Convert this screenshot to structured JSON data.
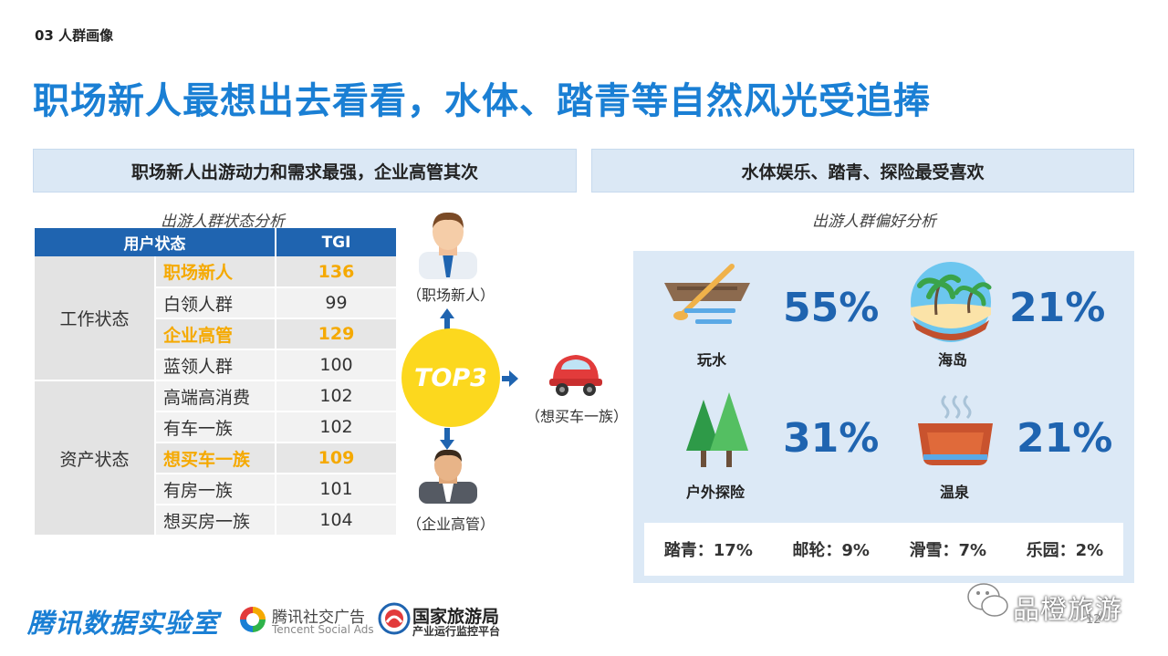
{
  "section_tag": "03 人群画像",
  "title": "职场新人最想出去看看，水体、踏青等自然风光受追捧",
  "left_banner": "职场新人出游动力和需求最强，企业高管其次",
  "right_banner": "水体娱乐、踏青、探险最受喜欢",
  "left_subtitle": "出游人群状态分析",
  "right_subtitle": "出游人群偏好分析",
  "table": {
    "headers": [
      "用户状态",
      "TGI"
    ],
    "groups": [
      {
        "name": "工作状态",
        "rows": [
          {
            "label": "职场新人",
            "value": "136",
            "highlight": true
          },
          {
            "label": "白领人群",
            "value": "99",
            "highlight": false
          },
          {
            "label": "企业高管",
            "value": "129",
            "highlight": true
          },
          {
            "label": "蓝领人群",
            "value": "100",
            "highlight": false
          }
        ]
      },
      {
        "name": "资产状态",
        "rows": [
          {
            "label": "高端高消费",
            "value": "102",
            "highlight": false
          },
          {
            "label": "有车一族",
            "value": "102",
            "highlight": false
          },
          {
            "label": "想买车一族",
            "value": "109",
            "highlight": true
          },
          {
            "label": "有房一族",
            "value": "101",
            "highlight": false
          },
          {
            "label": "想买房一族",
            "value": "104",
            "highlight": false
          }
        ]
      }
    ]
  },
  "top3": {
    "label": "TOP3",
    "items": [
      "（职场新人）",
      "（想买车一族）",
      "（企业高管）"
    ]
  },
  "preferences": [
    {
      "name": "玩水",
      "pct": "55%",
      "icon": "boat-icon"
    },
    {
      "name": "海岛",
      "pct": "21%",
      "icon": "island-icon"
    },
    {
      "name": "户外探险",
      "pct": "31%",
      "icon": "trees-icon"
    },
    {
      "name": "温泉",
      "pct": "21%",
      "icon": "hot-spring-icon"
    }
  ],
  "others": [
    "踏青：17%",
    "邮轮：9%",
    "滑雪：7%",
    "乐园：2%"
  ],
  "footer": {
    "brand": "腾讯数据实验室",
    "ads_cn": "腾讯社交广告",
    "ads_en": "Tencent Social Ads",
    "gov_cn": "国家旅游局",
    "gov_sub": "产业运行监控平台",
    "wechat": "品橙旅游",
    "page": "12"
  },
  "colors": {
    "accent": "#1a7fd4",
    "dark_blue": "#1f64b0",
    "highlight": "#f5a900",
    "circle": "#fcd81e",
    "panel": "#dce9f6"
  }
}
